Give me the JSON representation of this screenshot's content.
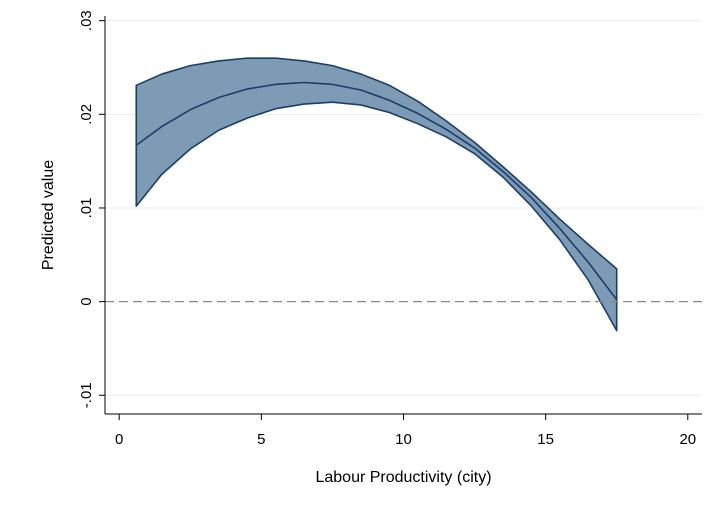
{
  "chart_data": {
    "type": "line",
    "title": "",
    "xlabel": "Labour Productivity (city)",
    "ylabel": "Predicted value",
    "xlim": [
      -0.5,
      20.5
    ],
    "ylim": [
      -0.012,
      0.0305
    ],
    "x_ticks": [
      0,
      5,
      10,
      15,
      20
    ],
    "y_ticks": [
      -0.01,
      0,
      0.01,
      0.02,
      0.03
    ],
    "x_tick_labels": [
      "0",
      "5",
      "10",
      "15",
      "20"
    ],
    "y_tick_labels": [
      "-.01",
      "0",
      ".01",
      ".02",
      ".03"
    ],
    "grid": "horizontal",
    "reference_line": {
      "y": 0,
      "style": "dashed"
    },
    "series": [
      {
        "type": "line",
        "x": [
          0.6,
          1.5,
          2.5,
          3.5,
          4.5,
          5.5,
          6.5,
          7.5,
          8.5,
          9.5,
          10.5,
          11.5,
          12.5,
          13.5,
          14.5,
          15.5,
          16.5,
          17.5
        ],
        "y": [
          0.0167,
          0.0187,
          0.0205,
          0.0218,
          0.0227,
          0.0232,
          0.0234,
          0.0232,
          0.0226,
          0.0215,
          0.0201,
          0.0184,
          0.0164,
          0.0139,
          0.0111,
          0.0078,
          0.0042,
          0.0002
        ]
      },
      {
        "type": "band",
        "x": [
          0.6,
          1.5,
          2.5,
          3.5,
          4.5,
          5.5,
          6.5,
          7.5,
          8.5,
          9.5,
          10.5,
          11.5,
          12.5,
          13.5,
          14.5,
          15.5,
          16.5,
          17.5
        ],
        "upper": [
          0.0231,
          0.0243,
          0.0252,
          0.0257,
          0.026,
          0.026,
          0.0257,
          0.0252,
          0.0243,
          0.0231,
          0.0214,
          0.0193,
          0.017,
          0.0144,
          0.0117,
          0.0088,
          0.0061,
          0.0035
        ],
        "lower": [
          0.0102,
          0.0136,
          0.0163,
          0.0183,
          0.0196,
          0.0206,
          0.0211,
          0.0213,
          0.021,
          0.0202,
          0.019,
          0.0176,
          0.0158,
          0.0133,
          0.0102,
          0.0066,
          0.0023,
          -0.0031
        ]
      }
    ],
    "colors": {
      "band_fill": "#7e9bb5",
      "band_edge": "#1b3e68",
      "line": "#1b3e68",
      "reference_line": "#8a8a8a",
      "grid": "#e9eef2",
      "axis": "#000000"
    }
  }
}
